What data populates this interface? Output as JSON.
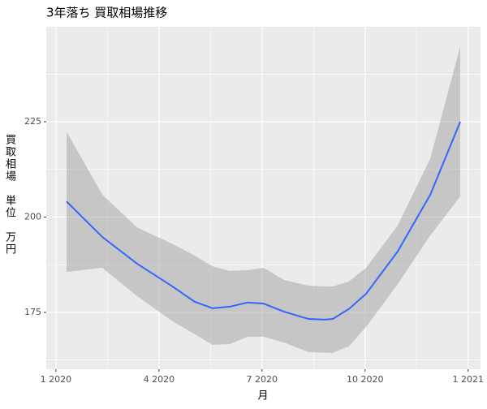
{
  "chart_data": {
    "type": "smooth",
    "title": "3年落ち 買取相場推移",
    "x_label": "月",
    "y_label": "買取相場　単位　万円",
    "x": [
      0.31,
      1.35,
      2.36,
      3.36,
      4.04,
      4.56,
      5.06,
      5.58,
      6.05,
      6.64,
      7.35,
      7.82,
      8.06,
      8.53,
      9.03,
      9.95,
      10.9,
      11.77
    ],
    "values": [
      204.1,
      194.8,
      187.8,
      182,
      177.8,
      176.1,
      176.5,
      177.6,
      177.3,
      175.2,
      173.3,
      173.1,
      173.3,
      175.9,
      179.9,
      191,
      205.9,
      225
    ],
    "lower": [
      185.6,
      186.7,
      179.3,
      172.9,
      169.3,
      166.5,
      166.7,
      168.6,
      168.6,
      167.1,
      164.6,
      164.4,
      164.4,
      166.1,
      171.2,
      182.4,
      195.2,
      205.4
    ],
    "upper": [
      222.4,
      205.9,
      197.3,
      193.1,
      189.9,
      187.1,
      185.9,
      186.1,
      186.7,
      183.5,
      182,
      181.8,
      181.8,
      183.1,
      186.7,
      197.8,
      215.4,
      244.8
    ],
    "color": "#3366ff",
    "band_color": "#999999",
    "xlim": [
      -0.28,
      12.36
    ],
    "ylim": [
      160.1,
      249.9
    ],
    "xticks": [
      {
        "value": 0,
        "label": "1 2020"
      },
      {
        "value": 3,
        "label": "4 2020"
      },
      {
        "value": 6,
        "label": "7 2020"
      },
      {
        "value": 9,
        "label": "10 2020"
      },
      {
        "value": 12,
        "label": "1 2021"
      }
    ],
    "yticks": [
      175,
      200,
      225
    ],
    "grid": true
  }
}
